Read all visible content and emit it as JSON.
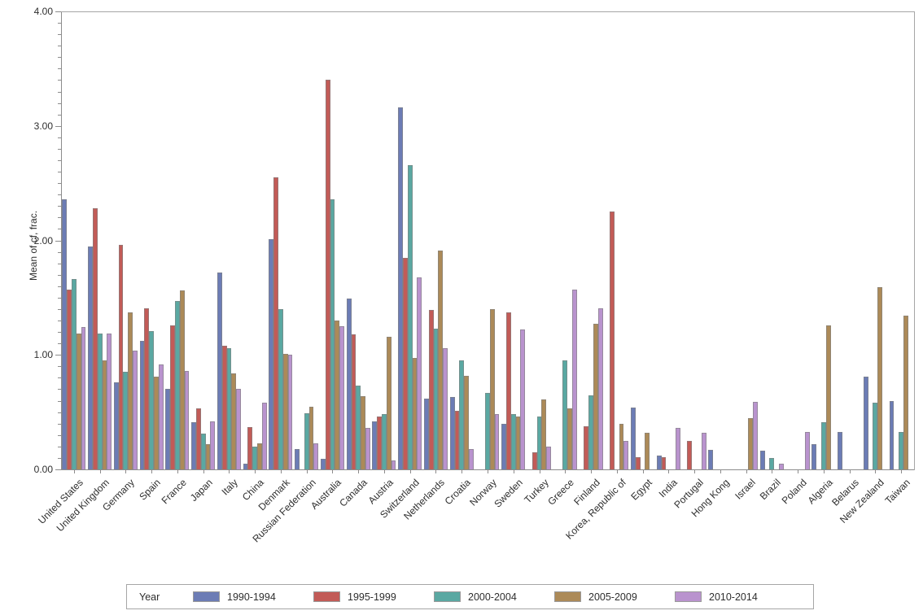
{
  "chart_data": {
    "type": "bar",
    "title": "",
    "xlabel": "",
    "ylabel": "Mean of cf, frac.",
    "ylim": [
      0,
      4
    ],
    "grid": false,
    "legend_position": "bottom",
    "legend_title": "Year",
    "ytick_labels": [
      "0.00",
      "1.00",
      "2.00",
      "3.00",
      "4.00"
    ],
    "ytick_values": [
      0,
      1,
      2,
      3,
      4
    ],
    "minor_tick_step": 0.1,
    "axis_color": "#a6a6a6",
    "categories": [
      "United States",
      "United Kingdom",
      "Germany",
      "Spain",
      "France",
      "Japan",
      "Italy",
      "China",
      "Denmark",
      "Russian Federation",
      "Australia",
      "Canada",
      "Austria",
      "Switzerland",
      "Netherlands",
      "Croatia",
      "Norway",
      "Sweden",
      "Turkey",
      "Greece",
      "Finland",
      "Korea, Republic of",
      "Egypt",
      "India",
      "Portugal",
      "Hong Kong",
      "Israel",
      "Brazil",
      "Poland",
      "Algeria",
      "Belarus",
      "New Zealand",
      "Taiwan"
    ],
    "series": [
      {
        "name": "1990-1994",
        "color": "#6c7cb5",
        "values": [
          2.36,
          1.95,
          0.76,
          1.12,
          0.7,
          0.41,
          1.72,
          0.05,
          2.01,
          0.18,
          0.09,
          1.49,
          0.42,
          3.16,
          0.62,
          0.63,
          0,
          0.4,
          0,
          0,
          0,
          0,
          0.54,
          0.12,
          0,
          0.17,
          0,
          0.16,
          0,
          0.22,
          0.33,
          0.81,
          0.6
        ]
      },
      {
        "name": "1995-1999",
        "color": "#c25b57",
        "values": [
          1.57,
          2.28,
          1.96,
          1.41,
          1.26,
          0.53,
          1.08,
          0.37,
          2.55,
          0,
          3.4,
          1.18,
          0.46,
          1.85,
          1.39,
          0.51,
          0,
          1.37,
          0.15,
          0,
          0.38,
          2.25,
          0.11,
          0.11,
          0.25,
          0,
          0,
          0,
          0,
          0,
          0,
          0,
          0
        ]
      },
      {
        "name": "2000-2004",
        "color": "#5aa8a2",
        "values": [
          1.66,
          1.19,
          0.85,
          1.21,
          1.47,
          0.31,
          1.06,
          0.2,
          1.4,
          0.49,
          2.36,
          0.73,
          0.48,
          2.66,
          1.23,
          0.95,
          0.67,
          0.48,
          0.46,
          0.95,
          0.65,
          0,
          0,
          0,
          0,
          0,
          0,
          0.1,
          0,
          0.41,
          0,
          0.58,
          0.33
        ]
      },
      {
        "name": "2005-2009",
        "color": "#ac8a58",
        "values": [
          1.19,
          0.95,
          1.37,
          0.81,
          1.56,
          0.22,
          0.84,
          0.23,
          1.01,
          0.55,
          1.3,
          0.64,
          1.16,
          0.97,
          1.91,
          0.82,
          1.4,
          0.46,
          0.61,
          0.53,
          1.27,
          0.4,
          0.32,
          0,
          0,
          0,
          0.45,
          0,
          0,
          1.26,
          0,
          1.59,
          1.34
        ]
      },
      {
        "name": "2010-2014",
        "color": "#b993ce",
        "values": [
          1.24,
          1.19,
          1.04,
          0.92,
          0.86,
          0.42,
          0.7,
          0.58,
          1.0,
          0.23,
          1.25,
          0.36,
          0.08,
          1.68,
          1.06,
          0.18,
          0.48,
          1.22,
          0.2,
          1.57,
          1.41,
          0.25,
          0,
          0.36,
          0.32,
          0,
          0.59,
          0.05,
          0.33,
          0,
          0,
          0,
          0
        ]
      }
    ]
  }
}
